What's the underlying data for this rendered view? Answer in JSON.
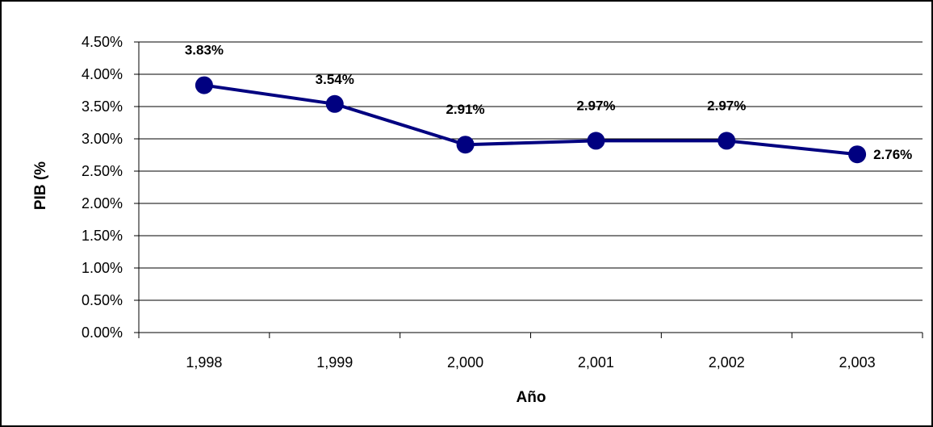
{
  "chart_data": {
    "type": "line",
    "categories": [
      "1,998",
      "1,999",
      "2,000",
      "2,001",
      "2,002",
      "2,003"
    ],
    "series": [
      {
        "values": [
          3.83,
          3.54,
          2.91,
          2.97,
          2.97,
          2.76
        ],
        "labels": [
          "3.83%",
          "3.54%",
          "2.91%",
          "2.97%",
          "2.97%",
          "2.76%"
        ]
      }
    ],
    "xlabel": "Año",
    "ylabel": "PIB (%",
    "ylim": [
      0,
      4.5
    ],
    "yticks": [
      "0.00%",
      "0.50%",
      "1.00%",
      "1.50%",
      "2.00%",
      "2.50%",
      "3.00%",
      "3.50%",
      "4.00%",
      "4.50%"
    ],
    "grid": true,
    "line_color": "#000080"
  }
}
